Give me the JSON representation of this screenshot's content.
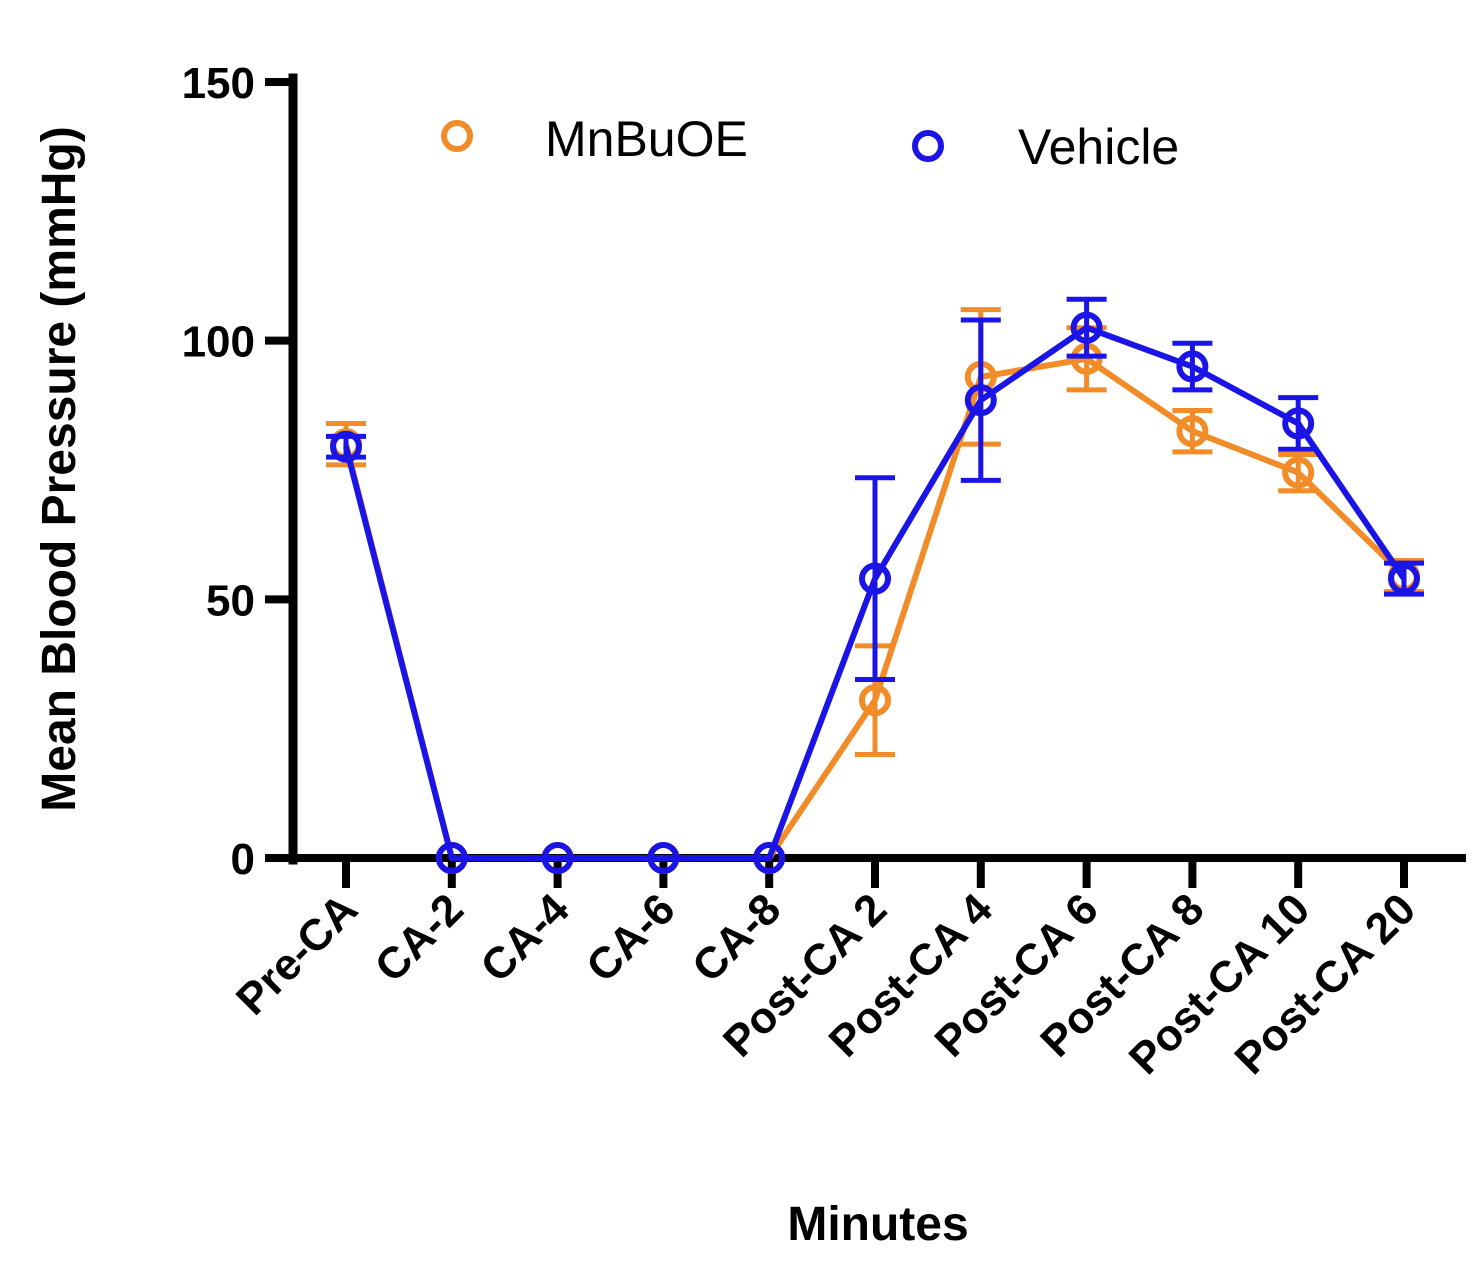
{
  "chart_data": {
    "type": "line",
    "title": "",
    "xlabel": "Minutes",
    "ylabel": "Mean Blood Pressure (mmHg)",
    "ylim": [
      0,
      150
    ],
    "yticks": [
      "0",
      "50",
      "100",
      "150"
    ],
    "categories": [
      "Pre-CA",
      "CA-2",
      "CA-4",
      "CA-6",
      "CA-8",
      "Post-CA 2",
      "Post-CA 4",
      "Post-CA 6",
      "Post-CA 8",
      "Post-CA 10",
      "Post-CA 20"
    ],
    "legend_position": "top",
    "grid": false,
    "series": [
      {
        "name": "MnBuOE",
        "color": "#F28C28",
        "marker": "open-circle",
        "values": [
          80,
          0,
          0,
          0,
          0,
          30.5,
          93,
          96.5,
          82.5,
          74.5,
          54.5
        ],
        "errors": [
          4,
          0,
          0,
          0,
          0,
          10.5,
          13,
          6,
          4,
          3.5,
          3
        ]
      },
      {
        "name": "Vehicle",
        "color": "#1A14E6",
        "marker": "open-circle",
        "values": [
          79.5,
          0,
          0,
          0,
          0,
          54,
          88.5,
          102.5,
          95,
          84,
          54
        ],
        "errors": [
          2,
          0,
          0,
          0,
          0,
          19.5,
          15.5,
          5.5,
          4.5,
          5,
          3
        ]
      }
    ]
  }
}
